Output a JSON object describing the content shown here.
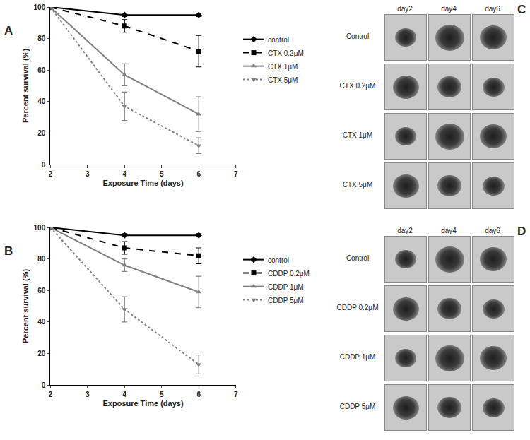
{
  "chart_data": [
    {
      "type": "line",
      "panel_label": "A",
      "xlabel": "Exposure Time (days)",
      "ylabel": "Percent survival (%)",
      "x": [
        2,
        4,
        6
      ],
      "xlim": [
        2,
        7
      ],
      "xticks": [
        2,
        3,
        4,
        5,
        6,
        7
      ],
      "ylim": [
        0,
        100
      ],
      "yticks": [
        0,
        20,
        40,
        60,
        80,
        100
      ],
      "grid": false,
      "legend": "right",
      "series": [
        {
          "name": "control",
          "color": "#000000",
          "marker": "diamond",
          "line_style": "solid",
          "values": [
            100,
            95,
            95
          ],
          "errors": [
            0,
            1,
            1
          ]
        },
        {
          "name": "CTX 0.2μM",
          "color": "#000000",
          "marker": "square",
          "line_style": "dash",
          "values": [
            100,
            88,
            72
          ],
          "errors": [
            0,
            4,
            10
          ]
        },
        {
          "name": "CTX 1μM",
          "color": "#808080",
          "marker": "triangle-up",
          "line_style": "solid",
          "values": [
            100,
            57,
            32
          ],
          "errors": [
            0,
            7,
            11
          ]
        },
        {
          "name": "CTX 5μM",
          "color": "#808080",
          "marker": "triangle-down",
          "line_style": "dot",
          "values": [
            100,
            37,
            12
          ],
          "errors": [
            0,
            9,
            5
          ]
        }
      ]
    },
    {
      "type": "line",
      "panel_label": "B",
      "xlabel": "Exposure Time (days)",
      "ylabel": "Percent survival (%)",
      "x": [
        2,
        4,
        6
      ],
      "xlim": [
        2,
        7
      ],
      "xticks": [
        2,
        3,
        4,
        5,
        6,
        7
      ],
      "ylim": [
        0,
        100
      ],
      "yticks": [
        0,
        20,
        40,
        60,
        80,
        100
      ],
      "grid": false,
      "legend": "right",
      "series": [
        {
          "name": "control",
          "color": "#000000",
          "marker": "diamond",
          "line_style": "solid",
          "values": [
            100,
            95,
            95
          ],
          "errors": [
            0,
            1,
            1
          ]
        },
        {
          "name": "CDDP 0.2μM",
          "color": "#000000",
          "marker": "square",
          "line_style": "dash",
          "values": [
            100,
            87,
            82
          ],
          "errors": [
            0,
            4,
            5
          ]
        },
        {
          "name": "CDDP 1μM",
          "color": "#808080",
          "marker": "triangle-up",
          "line_style": "solid",
          "values": [
            100,
            76,
            59
          ],
          "errors": [
            0,
            4,
            10
          ]
        },
        {
          "name": "CDDP 5μM",
          "color": "#808080",
          "marker": "triangle-down",
          "line_style": "dot",
          "values": [
            100,
            48,
            13
          ],
          "errors": [
            0,
            8,
            6
          ]
        }
      ]
    }
  ],
  "image_panels": [
    {
      "panel_label": "C",
      "columns": [
        "day2",
        "day4",
        "day6"
      ],
      "rows": [
        "Control",
        "CTX 0.2μM",
        "CTX 1μM",
        "CTX 5μM"
      ]
    },
    {
      "panel_label": "D",
      "columns": [
        "day2",
        "day4",
        "day6"
      ],
      "rows": [
        "Control",
        "CDDP 0.2μM",
        "CDDP 1μM",
        "CDDP 5μM"
      ]
    }
  ]
}
